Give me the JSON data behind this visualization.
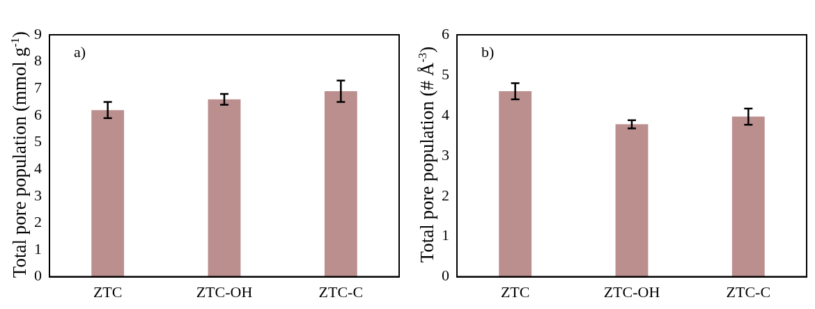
{
  "chart_data": [
    {
      "type": "bar",
      "ylabel": "Total pore population (mmol g$^{-1}$)",
      "categories": [
        "ZTC",
        "ZTC-OH",
        "ZTC-C"
      ],
      "values": [
        6.2,
        6.6,
        6.9
      ],
      "errors": [
        0.3,
        0.2,
        0.4
      ],
      "color": "#bc8f8f",
      "ylim": [
        0,
        9
      ],
      "yticks": [
        0,
        1,
        2,
        3,
        4,
        5,
        6,
        7,
        8,
        9
      ],
      "annotations": [
        "a)"
      ]
    },
    {
      "type": "bar",
      "ylabel": "Total pore population (# Å$^{-3}$)",
      "categories": [
        "ZTC",
        "ZTC-OH",
        "ZTC-C"
      ],
      "values": [
        4.6,
        3.78,
        3.97
      ],
      "errors": [
        0.2,
        0.1,
        0.2
      ],
      "color": "#bc8f8f",
      "ylim": [
        0,
        6
      ],
      "yticks": [
        0,
        1,
        2,
        3,
        4,
        5,
        6
      ],
      "annotations": [
        "b)"
      ]
    }
  ]
}
